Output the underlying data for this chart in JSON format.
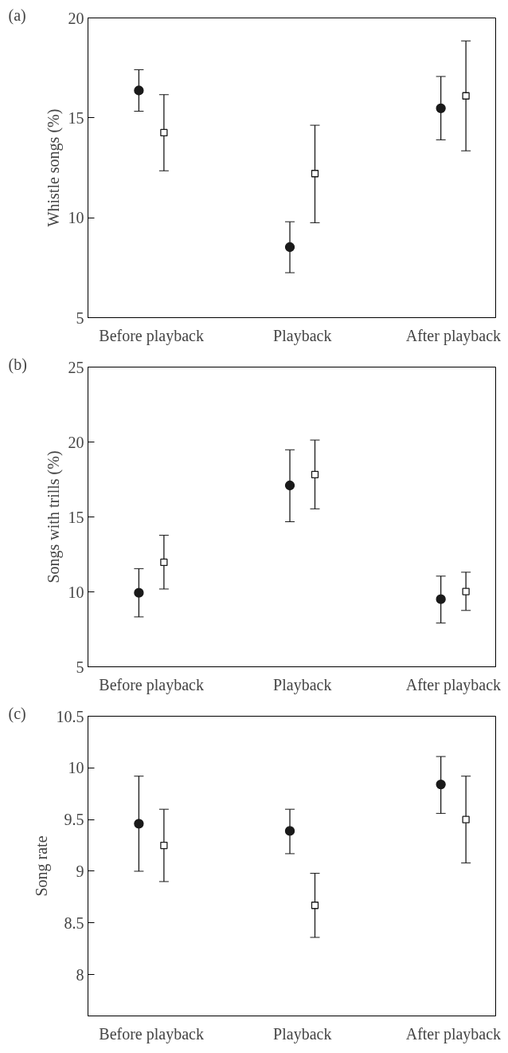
{
  "chart_data": [
    {
      "type": "scatter",
      "title": "(a)",
      "ylabel": "Whistle songs (%)",
      "categories": [
        "Before playback",
        "Playback",
        "After playback"
      ],
      "ylim": [
        5,
        20
      ],
      "yticks": [
        5,
        10,
        15,
        20
      ],
      "series": [
        {
          "color": "#1a1a1a",
          "marker": "circle",
          "values": [
            16.37,
            8.53,
            15.48
          ],
          "errors": [
            [
              15.33,
              17.41
            ],
            [
              7.25,
              9.8
            ],
            [
              13.9,
              17.07
            ]
          ]
        },
        {
          "color": "#1a1a1a",
          "marker": "square",
          "values": [
            14.26,
            12.21,
            16.1
          ],
          "errors": [
            [
              12.35,
              16.16
            ],
            [
              9.75,
              14.63
            ],
            [
              13.35,
              18.85
            ]
          ]
        }
      ]
    },
    {
      "type": "scatter",
      "title": "(b)",
      "ylabel": "Songs with trills (%)",
      "categories": [
        "Before playback",
        "Playback",
        "After playback"
      ],
      "ylim": [
        5,
        25
      ],
      "yticks": [
        5,
        10,
        15,
        20,
        25
      ],
      "series": [
        {
          "color": "#1a1a1a",
          "marker": "circle",
          "values": [
            9.94,
            17.1,
            9.51
          ],
          "errors": [
            [
              8.33,
              11.55
            ],
            [
              14.68,
              19.48
            ],
            [
              7.92,
              11.05
            ]
          ]
        },
        {
          "color": "#1a1a1a",
          "marker": "square",
          "values": [
            11.97,
            17.83,
            10.02
          ],
          "errors": [
            [
              10.19,
              13.78
            ],
            [
              15.54,
              20.13
            ],
            [
              8.76,
              11.31
            ]
          ]
        }
      ]
    },
    {
      "type": "scatter",
      "title": "(c)",
      "ylabel": "Song rate",
      "categories": [
        "Before playback",
        "Playback",
        "After playback"
      ],
      "ylim": [
        7.6,
        10.5
      ],
      "yticks": [
        8,
        8.5,
        9,
        9.5,
        10,
        10.5
      ],
      "series": [
        {
          "color": "#1a1a1a",
          "marker": "circle",
          "values": [
            9.46,
            9.39,
            9.84
          ],
          "errors": [
            [
              9.0,
              9.92
            ],
            [
              9.17,
              9.6
            ],
            [
              9.56,
              10.11
            ]
          ]
        },
        {
          "color": "#1a1a1a",
          "marker": "square",
          "values": [
            9.25,
            8.67,
            9.5
          ],
          "errors": [
            [
              8.9,
              9.6
            ],
            [
              8.36,
              8.98
            ],
            [
              9.08,
              9.92
            ]
          ]
        }
      ]
    }
  ]
}
